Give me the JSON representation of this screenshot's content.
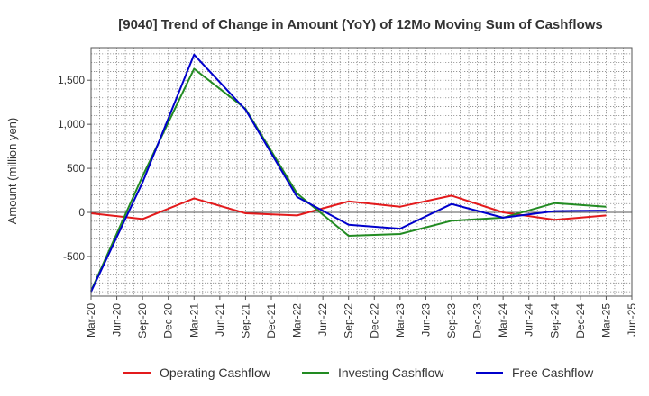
{
  "chart_data": {
    "type": "line",
    "title": "[9040]  Trend of Change in Amount (YoY) of 12Mo Moving Sum of Cashflows",
    "xlabel": "",
    "ylabel": "Amount (million yen)",
    "ylim": [
      -950,
      1870
    ],
    "yticks": [
      -500,
      0,
      500,
      1000,
      1500
    ],
    "ytick_labels": [
      "-500",
      "0",
      "500",
      "1,000",
      "1,500"
    ],
    "categories": [
      "Mar-20",
      "Jun-20",
      "Sep-20",
      "Dec-20",
      "Mar-21",
      "Jun-21",
      "Sep-21",
      "Dec-21",
      "Mar-22",
      "Jun-22",
      "Sep-22",
      "Dec-22",
      "Mar-23",
      "Jun-23",
      "Sep-23",
      "Dec-23",
      "Mar-24",
      "Jun-24",
      "Sep-24",
      "Dec-24",
      "Mar-25",
      "Jun-25"
    ],
    "grid": true,
    "legend_position": "bottom",
    "series": [
      {
        "name": "Operating Cashflow",
        "color": "#e31a1c",
        "x": [
          "Mar-20",
          "Sep-20",
          "Mar-21",
          "Sep-21",
          "Mar-22",
          "Sep-22",
          "Mar-23",
          "Sep-23",
          "Mar-24",
          "Sep-24",
          "Mar-25"
        ],
        "values": [
          -10,
          -75,
          160,
          -10,
          -35,
          125,
          65,
          190,
          0,
          -85,
          -35
        ]
      },
      {
        "name": "Investing Cashflow",
        "color": "#228b22",
        "x": [
          "Mar-20",
          "Sep-20",
          "Mar-21",
          "Sep-21",
          "Mar-22",
          "Sep-22",
          "Mar-23",
          "Sep-23",
          "Mar-24",
          "Sep-24",
          "Mar-25"
        ],
        "values": [
          -890,
          410,
          1630,
          1175,
          215,
          -265,
          -245,
          -95,
          -60,
          105,
          65
        ]
      },
      {
        "name": "Free Cashflow",
        "color": "#0000cc",
        "x": [
          "Mar-20",
          "Sep-20",
          "Mar-21",
          "Sep-21",
          "Mar-22",
          "Sep-22",
          "Mar-23",
          "Sep-23",
          "Mar-24",
          "Sep-24",
          "Mar-25"
        ],
        "values": [
          -900,
          340,
          1790,
          1165,
          175,
          -140,
          -185,
          95,
          -60,
          15,
          20
        ]
      }
    ]
  }
}
